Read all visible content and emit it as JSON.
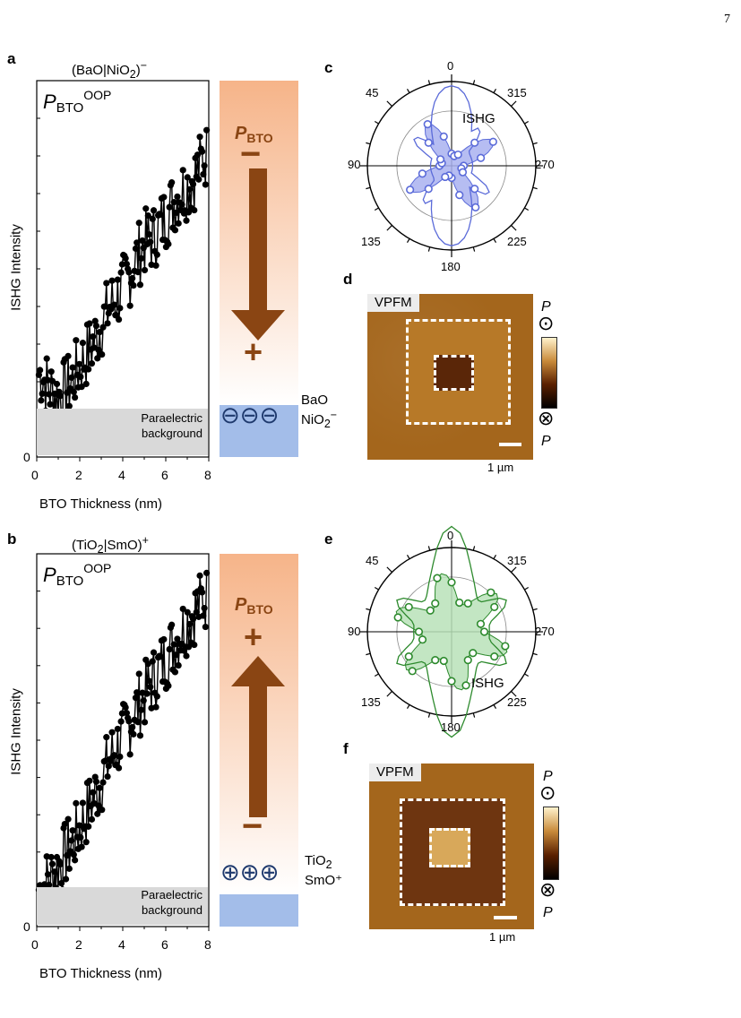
{
  "page_number": "7",
  "panels": {
    "a": {
      "label": "a",
      "title_base": "(BaO|NiO",
      "title_sub": "2",
      "title_end": ")",
      "title_sup": "−"
    },
    "b": {
      "label": "b",
      "title_base": "(TiO",
      "title_sub": "2",
      "title_end": "|SmO)",
      "title_sup": "+"
    },
    "c": {
      "label": "c",
      "series_label": "ISHG",
      "color": "#5b6bd9",
      "fill": "#a9b2f0"
    },
    "d": {
      "label": "d",
      "tag": "VPFM",
      "scale": "1 µm"
    },
    "e": {
      "label": "e",
      "series_label": "ISHG",
      "color": "#2d8a2d",
      "fill": "#b9e2b9"
    },
    "f": {
      "label": "f",
      "tag": "VPFM",
      "scale": "1 µm"
    }
  },
  "common": {
    "xlabel": "BTO Thickness (nm)",
    "ylabel": "ISHG Intensity",
    "p_oop_main": "P",
    "p_oop_sub": "BTO",
    "p_oop_sup": "OOP",
    "paraelectric_1": "Paraelectric",
    "paraelectric_2": "background",
    "pbto_main": "P",
    "pbto_sub": "BTO",
    "y_zero": "0",
    "x_ticks": [
      "0",
      "2",
      "4",
      "6",
      "8"
    ],
    "angles": [
      "0",
      "315",
      "270",
      "225",
      "180",
      "135",
      "90",
      "45"
    ],
    "colorbar_p": "P",
    "up_symbol": "⊙",
    "down_symbol": "⊗"
  },
  "schematic_a": {
    "top": "−",
    "bottom": "+",
    "ion": "⊖",
    "layer1": "BaO",
    "layer2_base": "NiO",
    "layer2_sub": "2",
    "layer2_sup": "−"
  },
  "schematic_b": {
    "top": "+",
    "bottom": "−",
    "ion": "⊕",
    "layer1_base": "TiO",
    "layer1_sub": "2",
    "layer2": "SmO⁺"
  },
  "chart_data": [
    {
      "panel": "a",
      "type": "scatter",
      "xlabel": "BTO Thickness (nm)",
      "ylabel": "ISHG Intensity",
      "xlim": [
        0,
        8
      ],
      "trend": "rising",
      "x": [
        0.2,
        0.6,
        1.0,
        1.4,
        1.8,
        2.2,
        2.6,
        3.0,
        3.4,
        3.8,
        4.2,
        4.6,
        5.0,
        5.4,
        5.8,
        6.2,
        6.6,
        7.0,
        7.4,
        7.8
      ],
      "y": [
        0.22,
        0.18,
        0.16,
        0.18,
        0.22,
        0.26,
        0.3,
        0.35,
        0.4,
        0.43,
        0.47,
        0.52,
        0.57,
        0.58,
        0.62,
        0.66,
        0.7,
        0.72,
        0.75,
        0.8
      ]
    },
    {
      "panel": "b",
      "type": "scatter",
      "xlabel": "BTO Thickness (nm)",
      "ylabel": "ISHG Intensity",
      "xlim": [
        0,
        8
      ],
      "trend": "rising",
      "x": [
        0.2,
        0.6,
        1.0,
        1.4,
        1.8,
        2.2,
        2.6,
        3.0,
        3.4,
        3.8,
        4.2,
        4.6,
        5.0,
        5.4,
        5.8,
        6.2,
        6.6,
        7.0,
        7.4,
        7.8
      ],
      "y": [
        0.1,
        0.13,
        0.16,
        0.2,
        0.24,
        0.29,
        0.34,
        0.39,
        0.45,
        0.49,
        0.53,
        0.58,
        0.62,
        0.66,
        0.7,
        0.74,
        0.78,
        0.82,
        0.85,
        0.88
      ]
    }
  ]
}
